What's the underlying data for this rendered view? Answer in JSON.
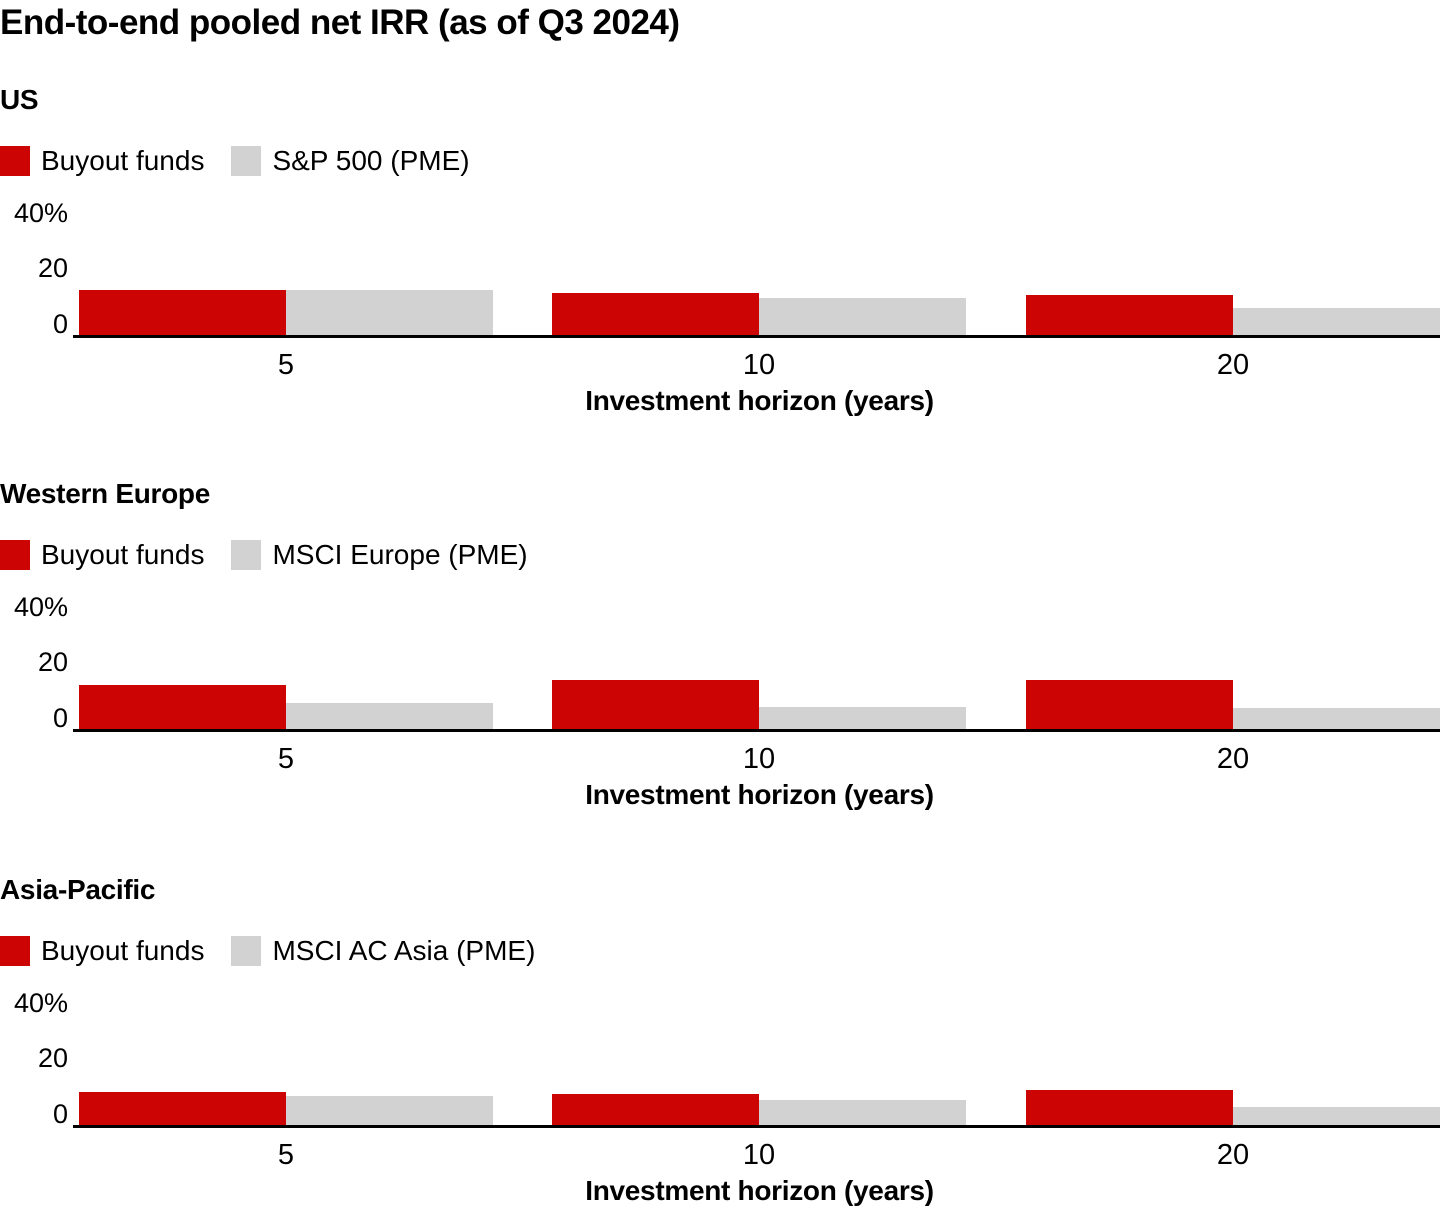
{
  "title": "End-to-end pooled net IRR (as of Q3 2024)",
  "colors": {
    "buyout": "#cc0404",
    "benchmark": "#d2d2d2",
    "axis": "#000000"
  },
  "axis": {
    "y_top_label": "40%",
    "y_mid_label": "20",
    "y_zero_label": "0",
    "x_label": "Investment horizon (years)",
    "y_max": 40
  },
  "chart_data": [
    {
      "type": "bar",
      "region": "US",
      "categories": [
        "5",
        "10",
        "20"
      ],
      "series": [
        {
          "name": "Buyout funds",
          "values": [
            16.2,
            15.0,
            14.4
          ]
        },
        {
          "name": "S&P 500 (PME)",
          "values": [
            16.4,
            13.3,
            9.8
          ]
        }
      ],
      "xlabel": "Investment horizon (years)",
      "ylabel": "",
      "ylim": [
        0,
        40
      ],
      "y_ticks": [
        "0",
        "20",
        "40%"
      ],
      "grid": false,
      "legend_position": "top-left"
    },
    {
      "type": "bar",
      "region": "Western Europe",
      "categories": [
        "5",
        "10",
        "20"
      ],
      "series": [
        {
          "name": "Buyout funds",
          "values": [
            15.7,
            17.8,
            17.7
          ]
        },
        {
          "name": "MSCI Europe (PME)",
          "values": [
            9.2,
            8.1,
            7.6
          ]
        }
      ],
      "xlabel": "Investment horizon (years)",
      "ylabel": "",
      "ylim": [
        0,
        40
      ],
      "y_ticks": [
        "0",
        "20",
        "40%"
      ],
      "grid": false,
      "legend_position": "top-left"
    },
    {
      "type": "bar",
      "region": "Asia-Pacific",
      "categories": [
        "5",
        "10",
        "20"
      ],
      "series": [
        {
          "name": "Buyout funds",
          "values": [
            12.0,
            11.0,
            12.6
          ]
        },
        {
          "name": "MSCI AC Asia (PME)",
          "values": [
            10.6,
            9.0,
            6.6
          ]
        }
      ],
      "xlabel": "Investment horizon (years)",
      "ylabel": "",
      "ylim": [
        0,
        40
      ],
      "y_ticks": [
        "0",
        "20",
        "40%"
      ],
      "grid": false,
      "legend_position": "top-left"
    }
  ]
}
